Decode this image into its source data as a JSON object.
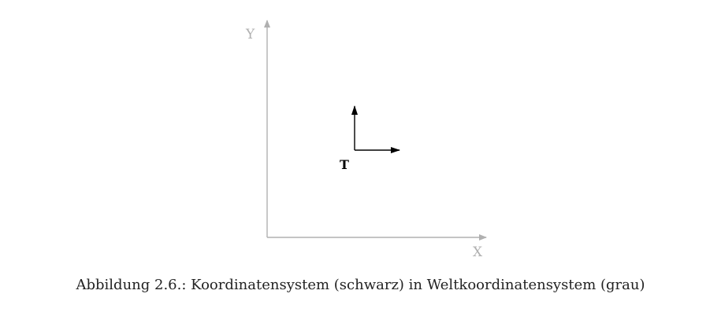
{
  "world_axes": {
    "x_label": "X",
    "y_label": "Y",
    "color": "#b0b0b0"
  },
  "local_frame": {
    "label": "T",
    "color": "#000000"
  },
  "caption": {
    "text": "Abbildung 2.6.: Koordinatensystem (schwarz) in Weltkoordinatensystem (grau)"
  }
}
